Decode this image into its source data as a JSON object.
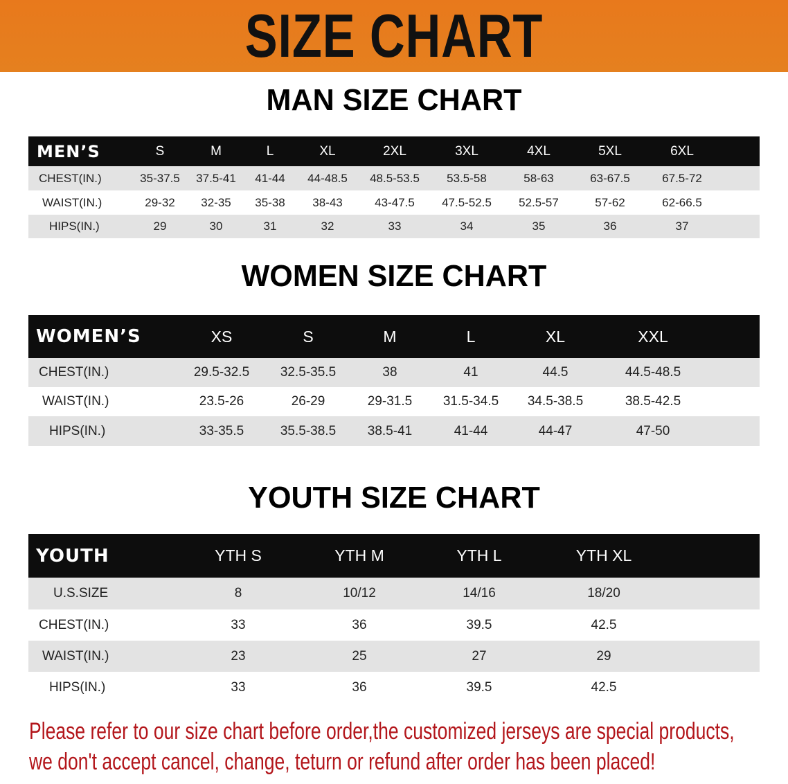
{
  "banner": {
    "title": "SIZE CHART",
    "color": "#e67e1d"
  },
  "men": {
    "title": "MAN SIZE CHART",
    "header": "MEN’S",
    "sizes": [
      "S",
      "M",
      "L",
      "XL",
      "2XL",
      "3XL",
      "4XL",
      "5XL",
      "6XL"
    ],
    "rows": [
      {
        "label": "CHEST(IN.)",
        "values": [
          "35-37.5",
          "37.5-41",
          "41-44",
          "44-48.5",
          "48.5-53.5",
          "53.5-58",
          "58-63",
          "63-67.5",
          "67.5-72"
        ]
      },
      {
        "label": "WAIST(IN.)",
        "values": [
          "29-32",
          "32-35",
          "35-38",
          "38-43",
          "43-47.5",
          "47.5-52.5",
          "52.5-57",
          "57-62",
          "62-66.5"
        ]
      },
      {
        "label": "HIPS(IN.)",
        "values": [
          "29",
          "30",
          "31",
          "32",
          "33",
          "34",
          "35",
          "36",
          "37"
        ]
      }
    ]
  },
  "women": {
    "title": "WOMEN SIZE CHART",
    "header": "WOMEN’S",
    "sizes": [
      "XS",
      "S",
      "M",
      "L",
      "XL",
      "XXL"
    ],
    "rows": [
      {
        "label": "CHEST(IN.)",
        "values": [
          "29.5-32.5",
          "32.5-35.5",
          "38",
          "41",
          "44.5",
          "44.5-48.5"
        ]
      },
      {
        "label": "WAIST(IN.)",
        "values": [
          "23.5-26",
          "26-29",
          "29-31.5",
          "31.5-34.5",
          "34.5-38.5",
          "38.5-42.5"
        ]
      },
      {
        "label": "HIPS(IN.)",
        "values": [
          "33-35.5",
          "35.5-38.5",
          "38.5-41",
          "41-44",
          "44-47",
          "47-50"
        ]
      }
    ]
  },
  "youth": {
    "title": "YOUTH SIZE CHART",
    "header": "YOUTH",
    "sizes": [
      "YTH S",
      "YTH M",
      "YTH L",
      "YTH XL"
    ],
    "rows": [
      {
        "label": "U.S.SIZE",
        "values": [
          "8",
          "10/12",
          "14/16",
          "18/20"
        ]
      },
      {
        "label": "CHEST(IN.)",
        "values": [
          "33",
          "36",
          "39.5",
          "42.5"
        ]
      },
      {
        "label": "WAIST(IN.)",
        "values": [
          "23",
          "25",
          "27",
          "29"
        ]
      },
      {
        "label": "HIPS(IN.)",
        "values": [
          "33",
          "36",
          "39.5",
          "42.5"
        ]
      }
    ]
  },
  "notice": {
    "line1": "Please refer to our size chart before order,the customized jerseys are special products,",
    "line2": "we don't accept cancel, change, teturn or refund after order has been placed!",
    "color": "#b3161b"
  }
}
